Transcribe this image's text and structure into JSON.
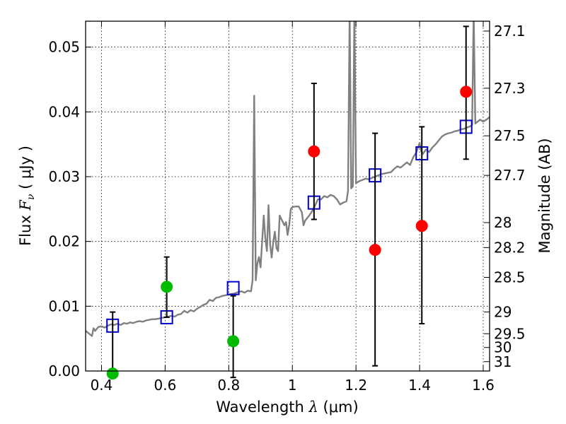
{
  "chart_data": {
    "type": "scatter",
    "xlabel": {
      "prefix": "Wavelength  ",
      "symbol": "λ",
      "unit": " (μm)"
    },
    "ylabel": {
      "prefix": "Flux  ",
      "symbol": "F",
      "subscript": "ν",
      "unit": "  ( μJy )"
    },
    "ylabel_right": "Magnitude (AB)",
    "xlim": [
      0.35,
      1.62
    ],
    "ylim": [
      0.0,
      0.054
    ],
    "grid": true,
    "x_ticks": [
      {
        "value": 0.4,
        "label": "0.4"
      },
      {
        "value": 0.6,
        "label": "0.6"
      },
      {
        "value": 0.8,
        "label": "0.8"
      },
      {
        "value": 1.0,
        "label": "1"
      },
      {
        "value": 1.2,
        "label": "1.2"
      },
      {
        "value": 1.4,
        "label": "1.4"
      },
      {
        "value": 1.6,
        "label": "1.6"
      }
    ],
    "y_ticks": [
      {
        "value": 0.0,
        "label": "0.00"
      },
      {
        "value": 0.01,
        "label": "0.01"
      },
      {
        "value": 0.02,
        "label": "0.02"
      },
      {
        "value": 0.03,
        "label": "0.03"
      },
      {
        "value": 0.04,
        "label": "0.04"
      },
      {
        "value": 0.05,
        "label": "0.05"
      }
    ],
    "right_ticks": [
      {
        "mag": 27.1,
        "label": "27.1"
      },
      {
        "mag": 27.3,
        "label": "27.3"
      },
      {
        "mag": 27.5,
        "label": "27.5"
      },
      {
        "mag": 27.7,
        "label": "27.7"
      },
      {
        "mag": 28,
        "label": "28"
      },
      {
        "mag": 28.2,
        "label": "28.2"
      },
      {
        "mag": 28.5,
        "label": "28.5"
      },
      {
        "mag": 29,
        "label": "29"
      },
      {
        "mag": 29.5,
        "label": "29.5"
      },
      {
        "mag": 30,
        "label": "30"
      },
      {
        "mag": 31,
        "label": "31"
      }
    ],
    "colors": {
      "sed": "#808080",
      "model_box": "#0000cc",
      "detection": "#ff0000",
      "optical": "#00bb00",
      "errorbar": "#000000"
    },
    "series": [
      {
        "type": "line",
        "color": "#808080",
        "points": [
          [
            0.35,
            0.0062
          ],
          [
            0.36,
            0.0058
          ],
          [
            0.37,
            0.0054
          ],
          [
            0.375,
            0.0066
          ],
          [
            0.38,
            0.0062
          ],
          [
            0.39,
            0.0068
          ],
          [
            0.4,
            0.0069
          ],
          [
            0.41,
            0.0067
          ],
          [
            0.42,
            0.007
          ],
          [
            0.43,
            0.0072
          ],
          [
            0.44,
            0.0071
          ],
          [
            0.45,
            0.0073
          ],
          [
            0.46,
            0.0071
          ],
          [
            0.47,
            0.0074
          ],
          [
            0.48,
            0.0073
          ],
          [
            0.49,
            0.0075
          ],
          [
            0.5,
            0.0074
          ],
          [
            0.51,
            0.0076
          ],
          [
            0.52,
            0.0077
          ],
          [
            0.53,
            0.0076
          ],
          [
            0.54,
            0.0078
          ],
          [
            0.55,
            0.0079
          ],
          [
            0.56,
            0.008
          ],
          [
            0.57,
            0.008
          ],
          [
            0.58,
            0.0081
          ],
          [
            0.59,
            0.0082
          ],
          [
            0.6,
            0.0083
          ],
          [
            0.61,
            0.0084
          ],
          [
            0.62,
            0.0085
          ],
          [
            0.63,
            0.0084
          ],
          [
            0.64,
            0.0087
          ],
          [
            0.65,
            0.0088
          ],
          [
            0.66,
            0.0093
          ],
          [
            0.67,
            0.009
          ],
          [
            0.68,
            0.0094
          ],
          [
            0.69,
            0.0092
          ],
          [
            0.7,
            0.0096
          ],
          [
            0.71,
            0.0099
          ],
          [
            0.72,
            0.0102
          ],
          [
            0.73,
            0.0104
          ],
          [
            0.74,
            0.011
          ],
          [
            0.75,
            0.0108
          ],
          [
            0.76,
            0.0113
          ],
          [
            0.77,
            0.0114
          ],
          [
            0.78,
            0.0116
          ],
          [
            0.79,
            0.0117
          ],
          [
            0.8,
            0.0118
          ],
          [
            0.81,
            0.0119
          ],
          [
            0.82,
            0.012
          ],
          [
            0.83,
            0.0122
          ],
          [
            0.84,
            0.0123
          ],
          [
            0.85,
            0.0121
          ],
          [
            0.86,
            0.0124
          ],
          [
            0.87,
            0.0123
          ],
          [
            0.875,
            0.014
          ],
          [
            0.88,
            0.0425
          ],
          [
            0.885,
            0.014
          ],
          [
            0.89,
            0.0166
          ],
          [
            0.895,
            0.0176
          ],
          [
            0.9,
            0.016
          ],
          [
            0.905,
            0.02
          ],
          [
            0.91,
            0.024
          ],
          [
            0.915,
            0.0205
          ],
          [
            0.92,
            0.0185
          ],
          [
            0.925,
            0.0256
          ],
          [
            0.93,
            0.0195
          ],
          [
            0.935,
            0.0175
          ],
          [
            0.94,
            0.02
          ],
          [
            0.945,
            0.0215
          ],
          [
            0.95,
            0.019
          ],
          [
            0.955,
            0.0185
          ],
          [
            0.96,
            0.024
          ],
          [
            0.965,
            0.0235
          ],
          [
            0.97,
            0.023
          ],
          [
            0.975,
            0.0225
          ],
          [
            0.98,
            0.023
          ],
          [
            0.985,
            0.021
          ],
          [
            0.99,
            0.0225
          ],
          [
            0.995,
            0.025
          ],
          [
            1.0,
            0.0253
          ],
          [
            1.01,
            0.0254
          ],
          [
            1.02,
            0.0254
          ],
          [
            1.03,
            0.0245
          ],
          [
            1.035,
            0.0225
          ],
          [
            1.04,
            0.0232
          ],
          [
            1.05,
            0.0238
          ],
          [
            1.06,
            0.0245
          ],
          [
            1.07,
            0.0254
          ],
          [
            1.08,
            0.0265
          ],
          [
            1.09,
            0.0265
          ],
          [
            1.1,
            0.027
          ],
          [
            1.11,
            0.0268
          ],
          [
            1.12,
            0.0272
          ],
          [
            1.13,
            0.027
          ],
          [
            1.14,
            0.0265
          ],
          [
            1.15,
            0.0257
          ],
          [
            1.16,
            0.026
          ],
          [
            1.17,
            0.0262
          ],
          [
            1.175,
            0.0278
          ],
          [
            1.18,
            0.0555
          ],
          [
            1.185,
            0.0282
          ],
          [
            1.19,
            0.0285
          ],
          [
            1.195,
            0.0555
          ],
          [
            1.2,
            0.029
          ],
          [
            1.21,
            0.0293
          ],
          [
            1.22,
            0.0295
          ],
          [
            1.23,
            0.0297
          ],
          [
            1.24,
            0.0296
          ],
          [
            1.25,
            0.0298
          ],
          [
            1.26,
            0.03
          ],
          [
            1.27,
            0.0302
          ],
          [
            1.28,
            0.0304
          ],
          [
            1.29,
            0.0305
          ],
          [
            1.3,
            0.0306
          ],
          [
            1.31,
            0.0307
          ],
          [
            1.32,
            0.0312
          ],
          [
            1.33,
            0.0316
          ],
          [
            1.34,
            0.0314
          ],
          [
            1.35,
            0.0318
          ],
          [
            1.36,
            0.0322
          ],
          [
            1.37,
            0.0318
          ],
          [
            1.38,
            0.033
          ],
          [
            1.39,
            0.0338
          ],
          [
            1.4,
            0.0352
          ],
          [
            1.405,
            0.034
          ],
          [
            1.41,
            0.0335
          ],
          [
            1.42,
            0.0342
          ],
          [
            1.43,
            0.0338
          ],
          [
            1.44,
            0.0345
          ],
          [
            1.45,
            0.035
          ],
          [
            1.46,
            0.0356
          ],
          [
            1.47,
            0.0362
          ],
          [
            1.48,
            0.0365
          ],
          [
            1.49,
            0.0367
          ],
          [
            1.5,
            0.0368
          ],
          [
            1.51,
            0.037
          ],
          [
            1.52,
            0.0371
          ],
          [
            1.53,
            0.0373
          ],
          [
            1.54,
            0.0374
          ],
          [
            1.55,
            0.0376
          ],
          [
            1.56,
            0.0378
          ],
          [
            1.565,
            0.038
          ],
          [
            1.57,
            0.0555
          ],
          [
            1.575,
            0.0382
          ],
          [
            1.58,
            0.0384
          ],
          [
            1.585,
            0.0386
          ],
          [
            1.59,
            0.0388
          ],
          [
            1.6,
            0.0385
          ],
          [
            1.61,
            0.0388
          ],
          [
            1.62,
            0.0392
          ]
        ]
      },
      {
        "type": "model_boxes",
        "marker": "open-square",
        "color": "#0000cc",
        "points": [
          [
            0.435,
            0.007
          ],
          [
            0.605,
            0.0083
          ],
          [
            0.814,
            0.0128
          ],
          [
            1.068,
            0.026
          ],
          [
            1.26,
            0.0302
          ],
          [
            1.407,
            0.0336
          ],
          [
            1.546,
            0.0377
          ]
        ]
      },
      {
        "type": "photometry",
        "marker": "filled-circle",
        "color": "#ff0000",
        "points": [
          {
            "x": 1.068,
            "y": 0.0339,
            "ylo": 0.0234,
            "yhi": 0.0444
          },
          {
            "x": 1.26,
            "y": 0.0187,
            "ylo": 0.0008,
            "yhi": 0.0367
          },
          {
            "x": 1.407,
            "y": 0.0224,
            "ylo": 0.0073,
            "yhi": 0.0377
          },
          {
            "x": 1.546,
            "y": 0.0431,
            "ylo": 0.0327,
            "yhi": 0.0532
          }
        ]
      },
      {
        "type": "photometry",
        "marker": "filled-circle",
        "color": "#00bb00",
        "points": [
          {
            "x": 0.435,
            "y": -0.0004,
            "ylo": -0.0004,
            "yhi": 0.0091
          },
          {
            "x": 0.605,
            "y": 0.013,
            "ylo": 0.0083,
            "yhi": 0.0176
          },
          {
            "x": 0.814,
            "y": 0.0046,
            "ylo": -0.001,
            "yhi": 0.0116
          }
        ]
      }
    ]
  }
}
